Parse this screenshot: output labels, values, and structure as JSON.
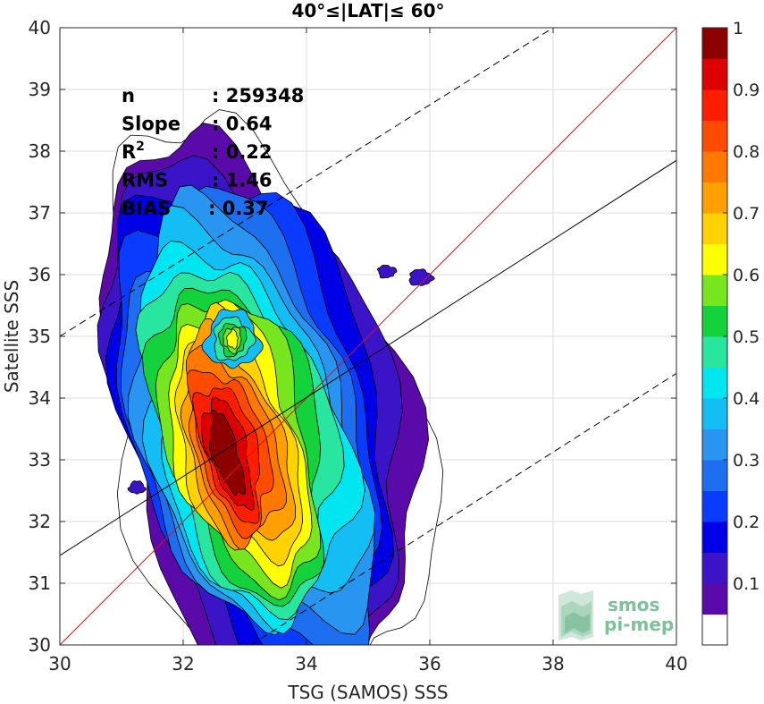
{
  "chart_data": {
    "type": "heatmap",
    "title": "40°≤|LAT|≤ 60°",
    "xlabel": "TSG (SAMOS) SSS",
    "ylabel": "Satellite SSS",
    "xlim": [
      30,
      40
    ],
    "ylim": [
      30,
      40
    ],
    "xticks": [
      30,
      32,
      34,
      36,
      38,
      40
    ],
    "yticks": [
      30,
      31,
      32,
      33,
      34,
      35,
      36,
      37,
      38,
      39,
      40
    ],
    "grid": true,
    "stats": [
      {
        "label": "n",
        "value": ": 259348"
      },
      {
        "label": "Slope",
        "value": ": 0.64"
      },
      {
        "label": "R",
        "sup": "2",
        "value": ": 0.22"
      },
      {
        "label": "RMS",
        "value": ": 1.46"
      },
      {
        "label": "BIAS",
        "value": ": 0.37"
      }
    ],
    "lines": [
      {
        "name": "one-to-one",
        "color": "#ff0000",
        "style": "solid",
        "points": [
          [
            30,
            30
          ],
          [
            40,
            40
          ]
        ]
      },
      {
        "name": "regression",
        "color": "#000000",
        "style": "solid",
        "points": [
          [
            30,
            31.45
          ],
          [
            40,
            37.85
          ]
        ]
      },
      {
        "name": "upper-bound",
        "color": "#000000",
        "style": "dashed",
        "points": [
          [
            30,
            35.0
          ],
          [
            38.0,
            40.0
          ]
        ]
      },
      {
        "name": "lower-bound",
        "color": "#000000",
        "style": "dashed",
        "points": [
          [
            33.1,
            30.0
          ],
          [
            40,
            34.4
          ]
        ]
      }
    ],
    "density_centers": [
      {
        "x": 32.7,
        "y": 33.1,
        "level": 1.0
      },
      {
        "x": 32.8,
        "y": 34.95,
        "level": 0.6
      }
    ],
    "contour_levels": [
      0.05,
      0.1,
      0.15,
      0.2,
      0.25,
      0.3,
      0.35,
      0.4,
      0.45,
      0.5,
      0.55,
      0.6,
      0.65,
      0.7,
      0.75,
      0.8,
      0.85,
      0.9,
      0.95,
      1.0
    ],
    "colorbar": {
      "ticks": [
        "0.1",
        "0.2",
        "0.3",
        "0.4",
        "0.5",
        "0.6",
        "0.7",
        "0.8",
        "0.9",
        "1"
      ],
      "tick_values": [
        0.1,
        0.2,
        0.3,
        0.4,
        0.5,
        0.6,
        0.7,
        0.8,
        0.9,
        1.0
      ],
      "colors": [
        "#ffffff",
        "#5a0aa8",
        "#3c14c8",
        "#0000e6",
        "#0a3cff",
        "#1e6ef0",
        "#2896f0",
        "#14bef5",
        "#00e6f0",
        "#28e6a0",
        "#14d23c",
        "#78e61e",
        "#ffff00",
        "#ffd200",
        "#ffa000",
        "#ff7800",
        "#ff4b00",
        "#ff1e00",
        "#dc0000",
        "#8c0000"
      ]
    },
    "logo": {
      "line1": "smos",
      "line2": "pi-mep"
    }
  }
}
